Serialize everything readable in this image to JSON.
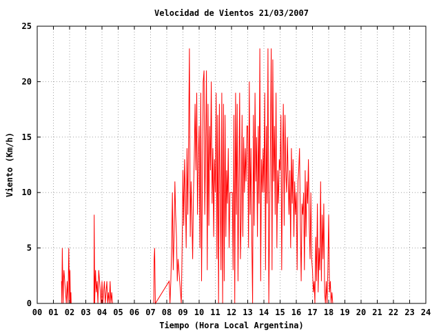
{
  "chart_data": {
    "type": "line",
    "title": "Velocidad de Vientos 21/03/2007",
    "xlabel": "Tiempo (Hora Local Argentina)",
    "ylabel": "Viento (Km/h)",
    "xlim": [
      0,
      24
    ],
    "ylim": [
      0,
      25
    ],
    "x_ticks": [
      "00",
      "01",
      "02",
      "03",
      "04",
      "05",
      "06",
      "07",
      "08",
      "09",
      "10",
      "11",
      "12",
      "13",
      "14",
      "15",
      "16",
      "17",
      "18",
      "19",
      "20",
      "21",
      "22",
      "23",
      "24"
    ],
    "y_ticks": [
      "0",
      "5",
      "10",
      "15",
      "20",
      "25"
    ],
    "grid": true,
    "series_color": "#ff0000",
    "series": [
      {
        "x": [
          1.5,
          1.52,
          1.55,
          1.58,
          1.6,
          1.62,
          1.65,
          1.7,
          1.75,
          1.8,
          1.85,
          1.9,
          1.95,
          2.0,
          2.02,
          2.05,
          2.08,
          2.1,
          2.12,
          2.15,
          2.2,
          3.5,
          3.52,
          3.55,
          3.58,
          3.6,
          3.65,
          3.7,
          3.75,
          3.8,
          3.85,
          3.9,
          3.95,
          4.0,
          4.05,
          4.1,
          4.15,
          4.2,
          4.25,
          4.3,
          4.35,
          4.4,
          4.45,
          4.5,
          4.55,
          4.6,
          4.65,
          4.7,
          4.75,
          4.8,
          7.2,
          7.22,
          7.25,
          7.3,
          8.15,
          8.2,
          8.25,
          8.3,
          8.35,
          8.4,
          8.45,
          8.5,
          8.55,
          8.6,
          8.65,
          8.7,
          8.75,
          8.8,
          8.85,
          8.9,
          8.95,
          9.0,
          9.05,
          9.1,
          9.15,
          9.2,
          9.25,
          9.3,
          9.35,
          9.4,
          9.45,
          9.5,
          9.55,
          9.6,
          9.65,
          9.7,
          9.75,
          9.8,
          9.85,
          9.9,
          9.95,
          10.0,
          10.05,
          10.1,
          10.15,
          10.2,
          10.25,
          10.3,
          10.35,
          10.4,
          10.45,
          10.5,
          10.55,
          10.6,
          10.65,
          10.7,
          10.75,
          10.8,
          10.85,
          10.9,
          10.95,
          11.0,
          11.05,
          11.1,
          11.15,
          11.2,
          11.25,
          11.3,
          11.35,
          11.4,
          11.45,
          11.5,
          11.55,
          11.6,
          11.65,
          11.7,
          11.75,
          11.8,
          11.85,
          11.9,
          11.95,
          12.0,
          12.05,
          12.1,
          12.15,
          12.2,
          12.25,
          12.3,
          12.35,
          12.4,
          12.45,
          12.5,
          12.55,
          12.6,
          12.65,
          12.7,
          12.75,
          12.8,
          12.85,
          12.9,
          12.95,
          13.0,
          13.05,
          13.1,
          13.15,
          13.2,
          13.25,
          13.3,
          13.35,
          13.4,
          13.45,
          13.5,
          13.55,
          13.6,
          13.65,
          13.7,
          13.75,
          13.8,
          13.85,
          13.9,
          13.95,
          14.0,
          14.05,
          14.1,
          14.15,
          14.2,
          14.25,
          14.3,
          14.35,
          14.4,
          14.45,
          14.5,
          14.55,
          14.6,
          14.65,
          14.7,
          14.75,
          14.8,
          14.85,
          14.9,
          14.95,
          15.0,
          15.05,
          15.1,
          15.15,
          15.2,
          15.25,
          15.3,
          15.35,
          15.4,
          15.45,
          15.5,
          15.55,
          15.6,
          15.65,
          15.7,
          15.75,
          15.8,
          15.85,
          15.9,
          15.95,
          16.0,
          16.05,
          16.1,
          16.15,
          16.2,
          16.25,
          16.3,
          16.35,
          16.4,
          16.45,
          16.5,
          16.55,
          16.6,
          16.65,
          16.7,
          16.75,
          16.8,
          16.85,
          16.9,
          16.95,
          17.0,
          17.05,
          17.1,
          17.15,
          17.2,
          17.25,
          17.3,
          17.35,
          17.4,
          17.45,
          17.5,
          17.55,
          17.6,
          17.65,
          17.7,
          17.75,
          17.8,
          17.85,
          17.9,
          17.95,
          18.0,
          18.05,
          18.1,
          18.15,
          18.2,
          18.25,
          18.3
        ],
        "y": [
          2,
          0,
          5,
          2,
          0,
          2,
          3,
          2,
          1,
          0,
          2,
          0,
          5,
          0,
          3,
          0,
          1,
          0,
          0,
          0,
          0,
          0,
          8,
          0,
          2,
          3,
          1,
          2,
          0,
          3,
          2,
          1,
          0,
          2,
          0,
          1,
          2,
          0,
          1,
          2,
          0,
          1,
          0,
          2,
          0,
          1,
          0,
          0,
          0,
          0,
          0,
          4,
          5,
          0,
          2,
          0,
          2,
          5,
          10,
          3,
          6,
          11,
          8,
          6,
          2,
          4,
          3,
          2,
          1,
          0,
          5,
          12,
          7,
          13,
          10,
          5,
          14,
          8,
          15,
          23,
          6,
          11,
          8,
          4,
          10,
          13,
          18,
          12,
          19,
          8,
          13,
          16,
          5,
          19,
          2,
          11,
          20,
          21,
          8,
          14,
          21,
          3,
          18,
          7,
          16,
          12,
          20,
          9,
          14,
          6,
          13,
          10,
          19,
          4,
          17,
          0,
          18,
          10,
          3,
          19,
          0,
          18,
          2,
          17,
          6,
          12,
          9,
          14,
          5,
          10,
          10,
          10,
          10,
          3,
          17,
          0,
          19,
          8,
          18,
          2,
          11,
          19,
          4,
          8,
          17,
          6,
          15,
          10,
          14,
          11,
          16,
          16,
          5,
          20,
          8,
          14,
          6,
          0,
          17,
          7,
          19,
          11,
          15,
          6,
          16,
          9,
          23,
          2,
          13,
          10,
          14,
          10,
          19,
          3,
          16,
          9,
          23,
          0,
          7,
          14,
          23,
          3,
          22,
          11,
          16,
          8,
          19,
          5,
          12,
          9,
          13,
          12,
          17,
          3,
          13,
          18,
          7,
          17,
          12,
          10,
          15,
          11,
          8,
          12,
          5,
          14,
          9,
          13,
          6,
          11,
          8,
          10,
          3,
          11,
          12,
          14,
          7,
          2,
          9,
          8,
          10,
          3,
          12,
          6,
          11,
          9,
          13,
          7,
          4,
          10,
          4,
          3,
          1,
          2,
          0,
          6,
          2,
          9,
          1,
          5,
          3,
          11,
          2,
          8,
          4,
          9,
          1,
          0,
          2,
          0,
          3,
          8,
          1,
          2,
          0,
          1,
          0,
          0
        ]
      }
    ]
  }
}
